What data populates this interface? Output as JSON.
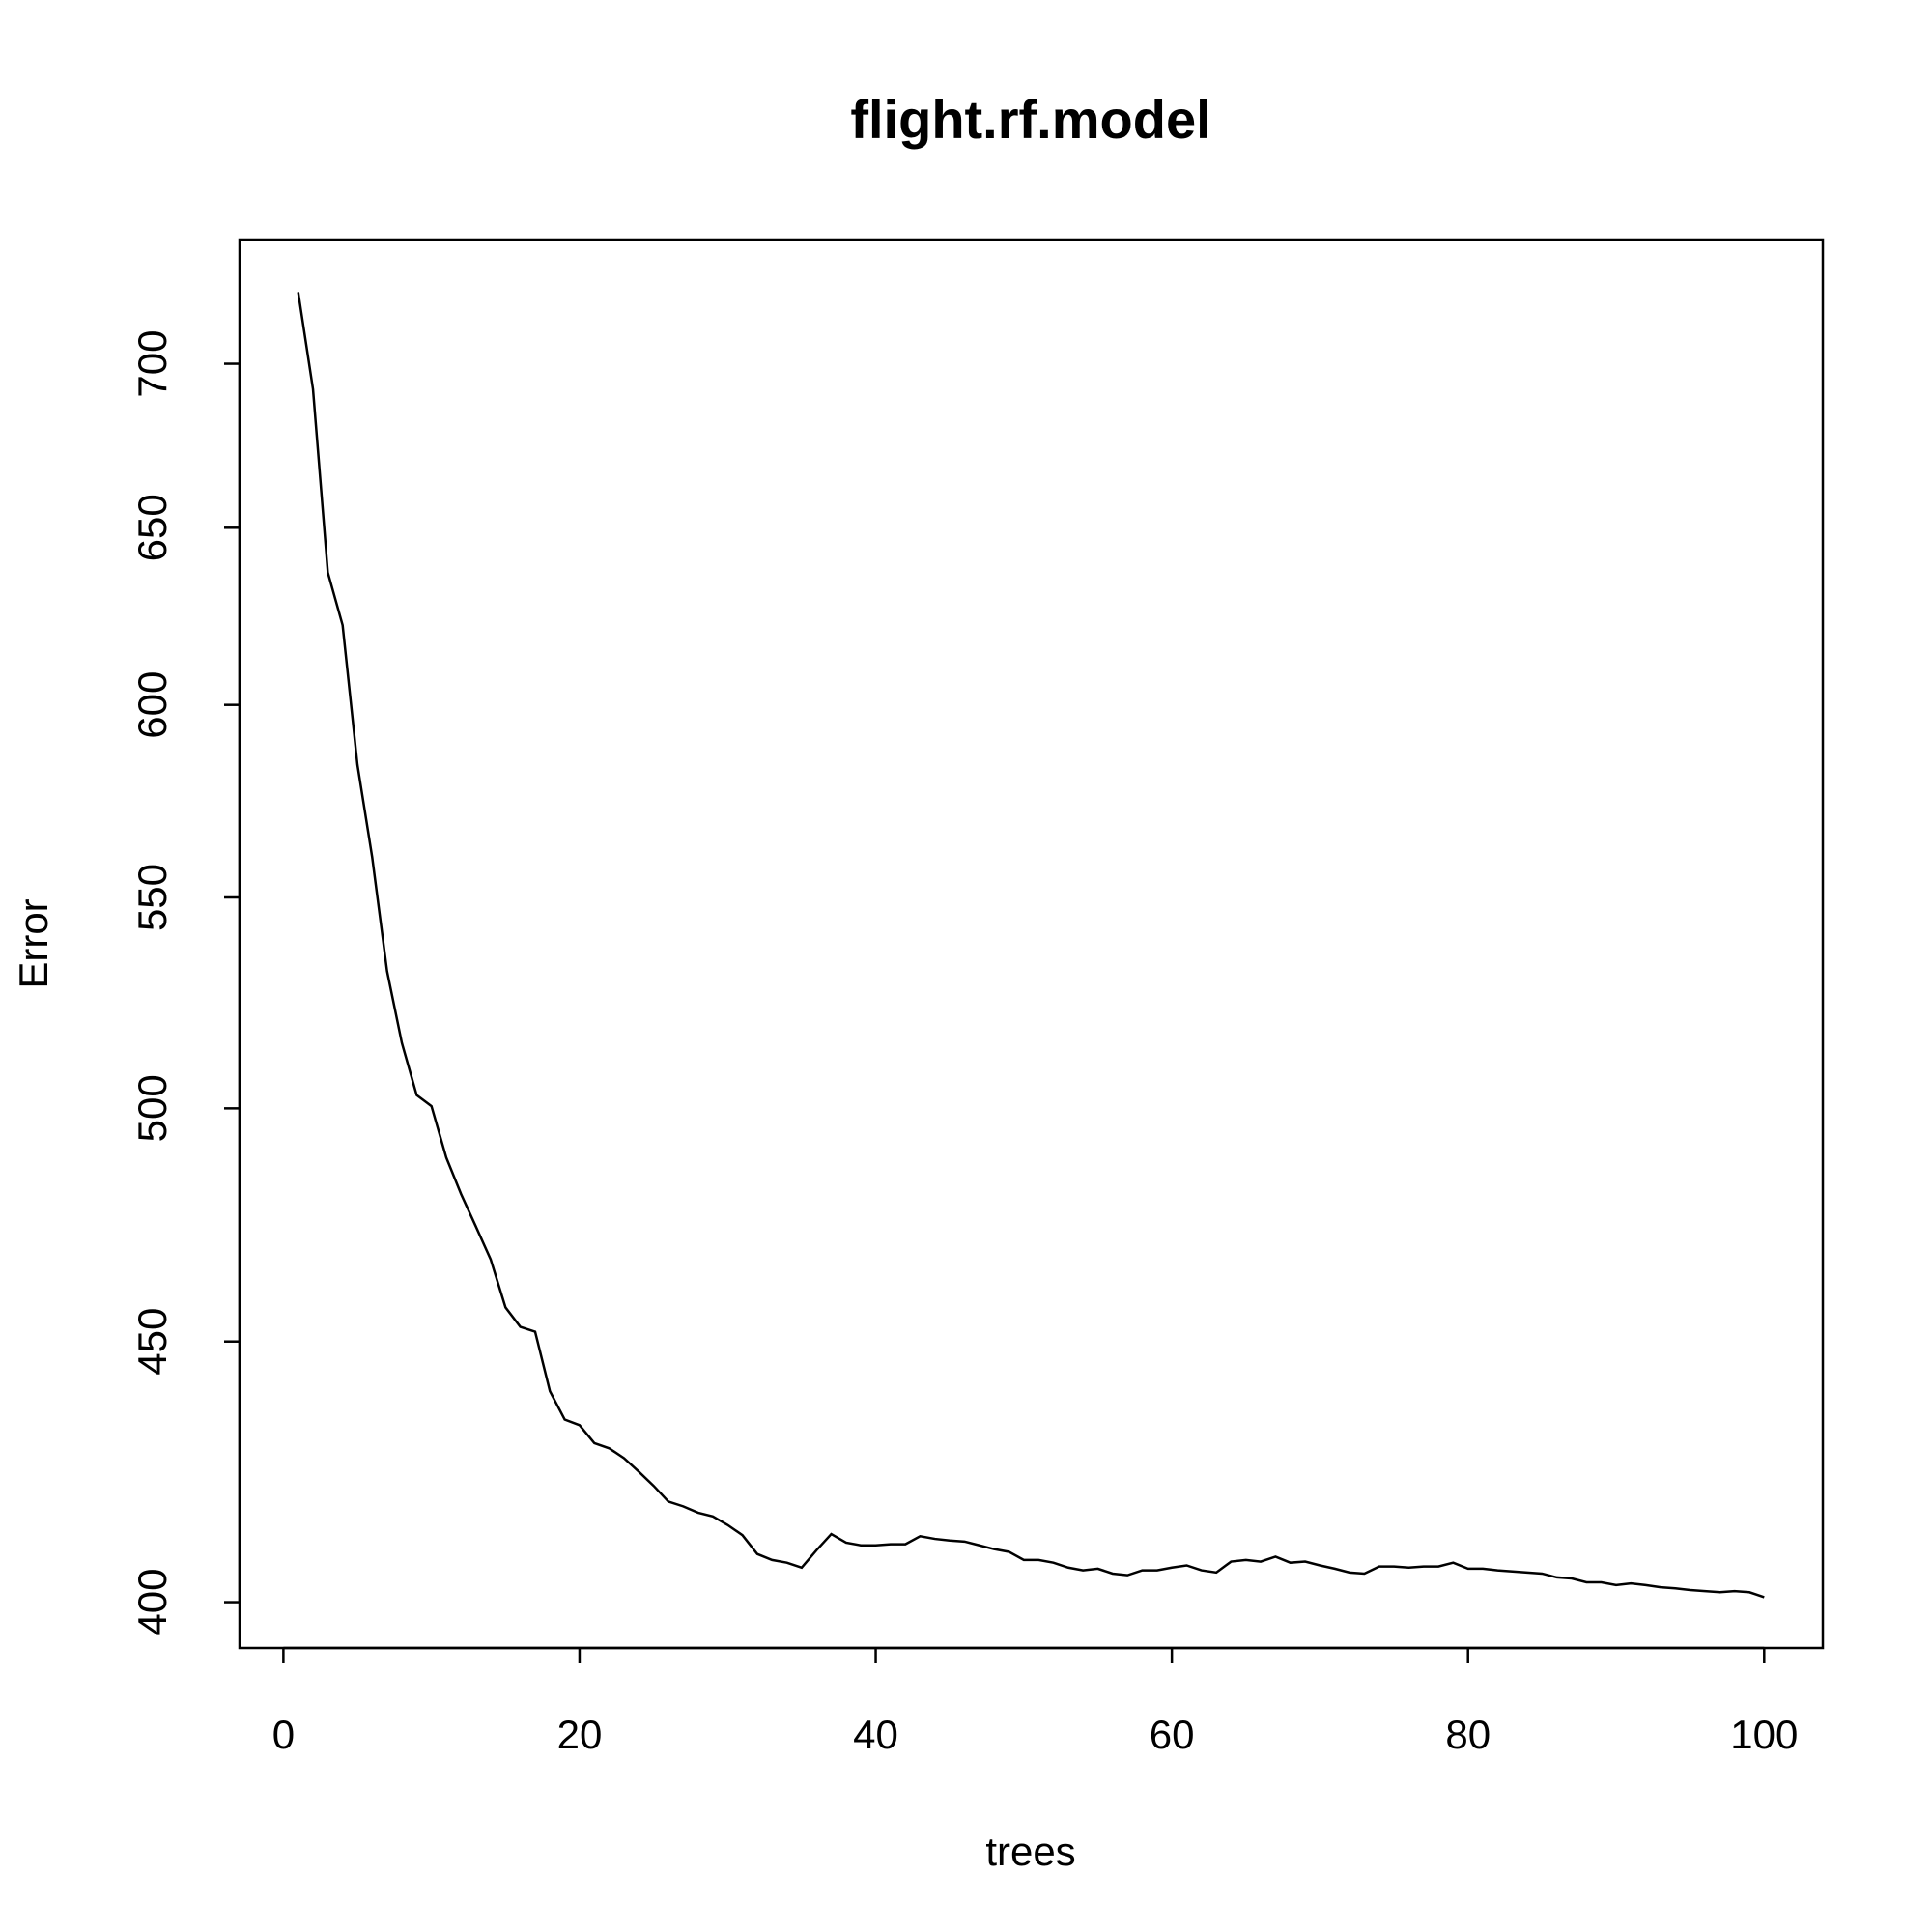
{
  "chart_data": {
    "type": "line",
    "title": "flight.rf.model",
    "xlabel": "trees",
    "ylabel": "Error",
    "log_y": true,
    "color": "#000000",
    "x": [
      1,
      2,
      3,
      4,
      5,
      6,
      7,
      8,
      9,
      10,
      11,
      12,
      13,
      14,
      15,
      16,
      17,
      18,
      19,
      20,
      21,
      22,
      23,
      24,
      25,
      26,
      27,
      28,
      29,
      30,
      31,
      32,
      33,
      34,
      35,
      36,
      37,
      38,
      39,
      40,
      41,
      42,
      43,
      44,
      45,
      46,
      47,
      48,
      49,
      50,
      51,
      52,
      53,
      54,
      55,
      56,
      57,
      58,
      59,
      60,
      61,
      62,
      63,
      64,
      65,
      66,
      67,
      68,
      69,
      70,
      71,
      72,
      73,
      74,
      75,
      76,
      77,
      78,
      79,
      80,
      81,
      82,
      83,
      84,
      85,
      86,
      87,
      88,
      89,
      90,
      91,
      92,
      93,
      94,
      95,
      96,
      97,
      98,
      99,
      100
    ],
    "values": [
      723,
      692,
      637,
      622,
      584,
      560,
      532,
      515,
      503,
      500.5,
      489,
      481,
      474,
      467,
      457,
      453,
      452,
      440,
      434.4,
      433.3,
      429.8,
      428.8,
      426.9,
      424.3,
      421.6,
      418.6,
      417.7,
      416.5,
      415.8,
      414.2,
      412.3,
      408.8,
      407.7,
      407.2,
      406.3,
      409.5,
      412.5,
      410.9,
      410.4,
      410.4,
      410.6,
      410.6,
      412.1,
      411.6,
      411.3,
      411.1,
      410.4,
      409.7,
      409.2,
      407.7,
      407.7,
      407.2,
      406.3,
      405.8,
      406.1,
      405.2,
      404.9,
      405.8,
      405.8,
      406.3,
      406.7,
      405.8,
      405.4,
      407.4,
      407.7,
      407.4,
      408.3,
      407.2,
      407.4,
      406.7,
      406.1,
      405.4,
      405.2,
      406.5,
      406.5,
      406.3,
      406.5,
      406.5,
      407.2,
      406.1,
      406.1,
      405.8,
      405.6,
      405.4,
      405.2,
      404.5,
      404.3,
      403.6,
      403.6,
      403.1,
      403.4,
      403.1,
      402.7,
      402.5,
      402.2,
      402.0,
      401.8,
      402.0,
      401.8,
      400.9
    ],
    "xlim": [
      -2.96,
      103.96
    ],
    "xticks": [
      0,
      20,
      40,
      60,
      80,
      100
    ],
    "ylim": [
      391.8,
      740.4
    ],
    "yticks": [
      400,
      450,
      500,
      550,
      600,
      650,
      700
    ]
  }
}
